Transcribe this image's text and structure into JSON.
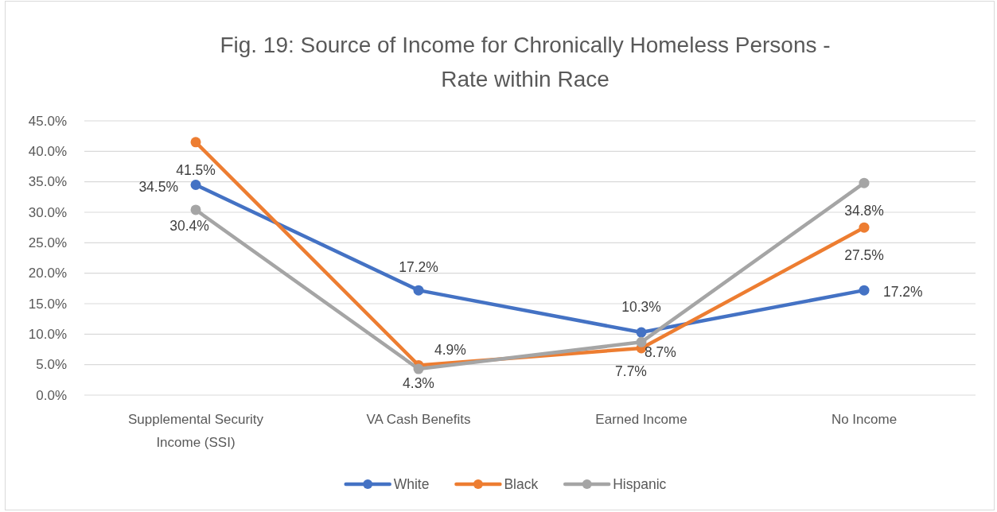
{
  "chart_data": {
    "type": "line",
    "title": "Fig. 19: Source of Income for Chronically Homeless Persons - Rate within Race",
    "categories": [
      "Supplemental Security Income (SSI)",
      "VA Cash Benefits",
      "Earned Income",
      "No Income"
    ],
    "series": [
      {
        "name": "White",
        "color": "#4472c4",
        "values": [
          34.5,
          17.2,
          10.3,
          17.2
        ],
        "value_labels": [
          "34.5%",
          "17.2%",
          "10.3%",
          "17.2%"
        ]
      },
      {
        "name": "Black",
        "color": "#ed7d31",
        "values": [
          41.5,
          4.9,
          7.7,
          27.5
        ],
        "value_labels": [
          "41.5%",
          "4.9%",
          "7.7%",
          "27.5%"
        ]
      },
      {
        "name": "Hispanic",
        "color": "#a5a5a5",
        "values": [
          30.4,
          4.3,
          8.7,
          34.8
        ],
        "value_labels": [
          "30.4%",
          "4.3%",
          "8.7%",
          "34.8%"
        ]
      }
    ],
    "ylim": [
      0,
      45
    ],
    "yticks": [
      {
        "value": 0,
        "label": "0.0%"
      },
      {
        "value": 5,
        "label": "5.0%"
      },
      {
        "value": 10,
        "label": "10.0%"
      },
      {
        "value": 15,
        "label": "15.0%"
      },
      {
        "value": 20,
        "label": "20.0%"
      },
      {
        "value": 25,
        "label": "25.0%"
      },
      {
        "value": 30,
        "label": "30.0%"
      },
      {
        "value": 35,
        "label": "35.0%"
      },
      {
        "value": 40,
        "label": "40.0%"
      },
      {
        "value": 45,
        "label": "45.0%"
      }
    ],
    "grid": "y",
    "legend": "bottom",
    "marker": "circle",
    "line_style": "solid"
  }
}
